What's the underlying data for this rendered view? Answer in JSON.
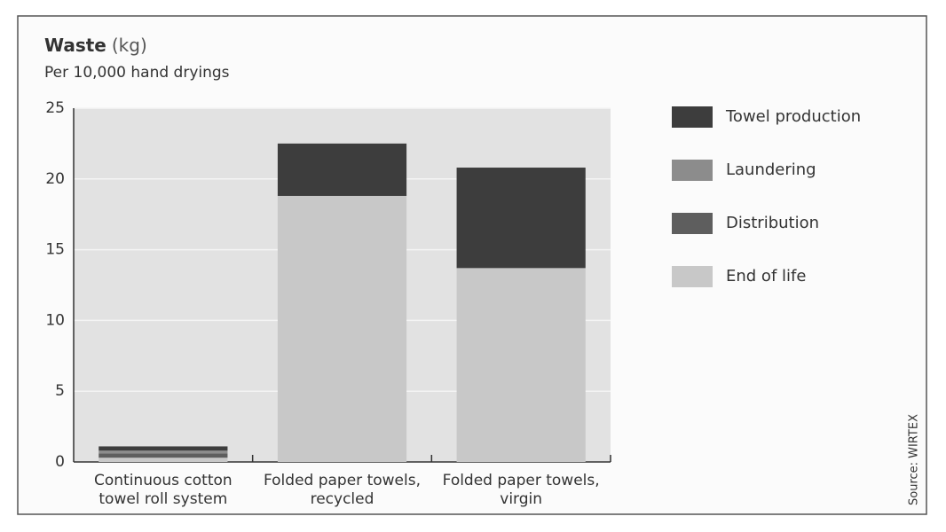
{
  "chart_data": {
    "type": "stacked_bar",
    "title": "Waste",
    "title_unit": "(kg)",
    "subtitle": "Per 10,000 hand dryings",
    "source": "Source: WIRTEX",
    "categories": [
      "Continuous cotton towel roll system",
      "Folded paper towels, recycled",
      "Folded paper towels, virgin"
    ],
    "series": [
      {
        "name": "Towel production",
        "color": "#3d3d3d",
        "values": [
          0.3,
          3.7,
          7.1
        ]
      },
      {
        "name": "Laundering",
        "color": "#8c8c8c",
        "values": [
          0.2,
          0,
          0
        ]
      },
      {
        "name": "Distribution",
        "color": "#5e5e5e",
        "values": [
          0.3,
          0,
          0
        ]
      },
      {
        "name": "End of life",
        "color": "#c8c8c8",
        "values": [
          0.3,
          18.8,
          13.7
        ]
      }
    ],
    "ylim": [
      0,
      25
    ],
    "yticks": [
      0,
      5,
      10,
      15,
      20,
      25
    ],
    "grid": true
  }
}
